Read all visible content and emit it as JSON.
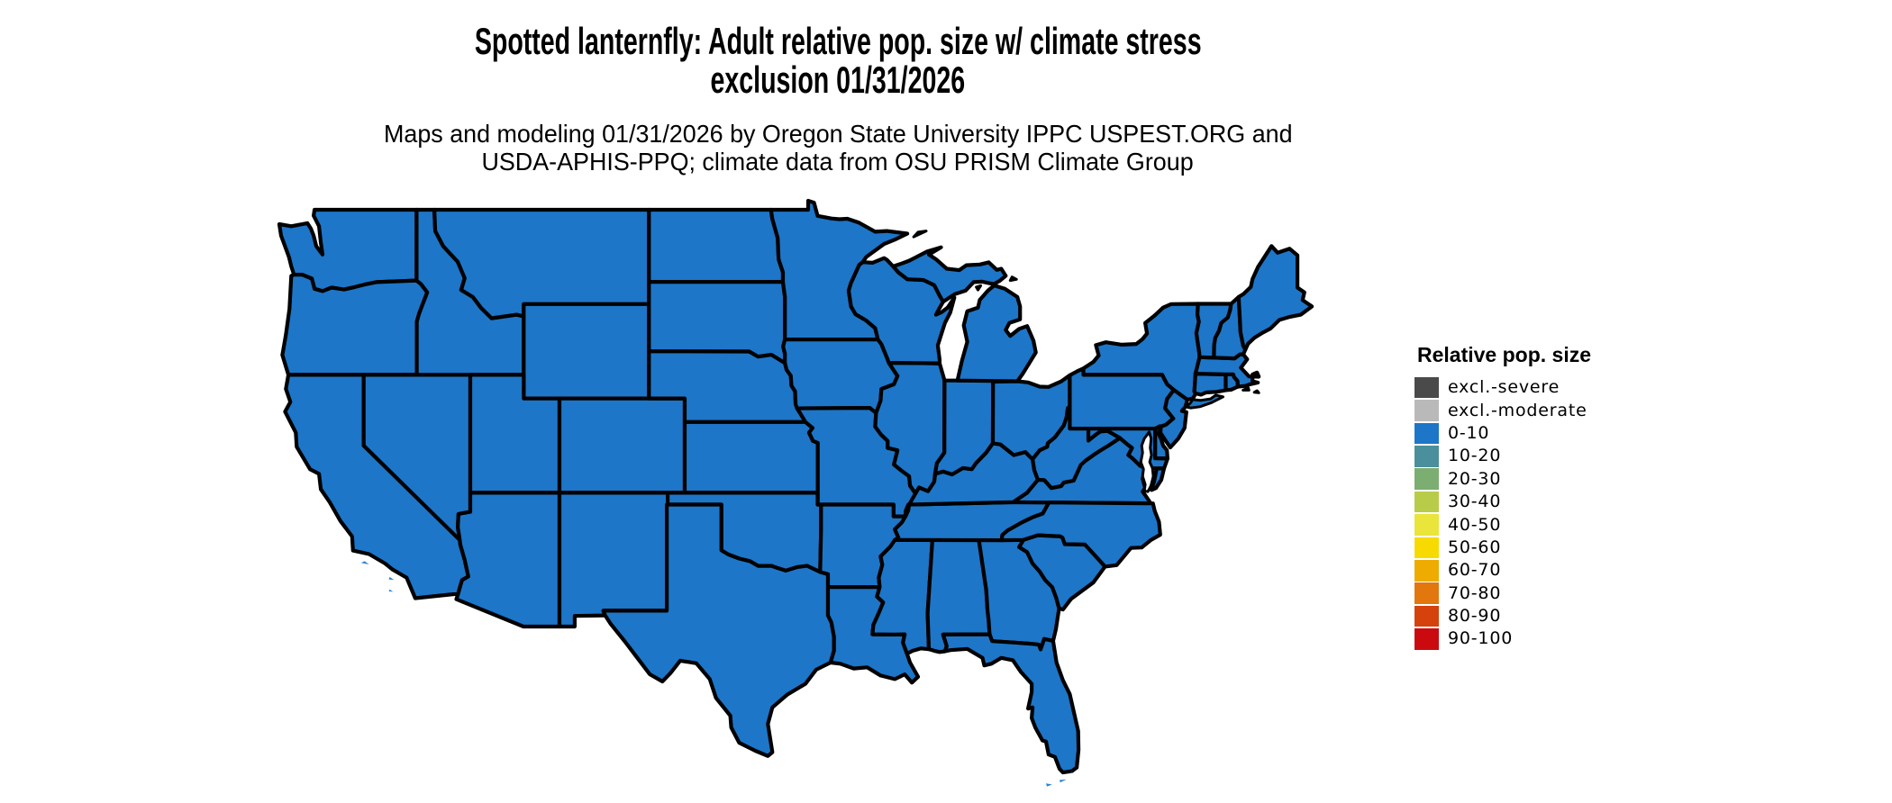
{
  "title": {
    "line1": "Spotted lanternfly: Adult relative pop. size w/ climate stress",
    "line2": "exclusion 01/31/2026"
  },
  "subtitle": {
    "line1": "Maps and modeling 01/31/2026 by Oregon State University IPPC USPEST.ORG and",
    "line2": "USDA-APHIS-PPQ; climate data from OSU PRISM Climate Group"
  },
  "legend": {
    "title": "Relative pop. size",
    "items": [
      {
        "label": "excl.-severe",
        "color": "#4a4a4a"
      },
      {
        "label": "excl.-moderate",
        "color": "#b9b9b9"
      },
      {
        "label": "0-10",
        "color": "#1d76c8"
      },
      {
        "label": "10-20",
        "color": "#4b8f9d"
      },
      {
        "label": "20-30",
        "color": "#7bae70"
      },
      {
        "label": "30-40",
        "color": "#b8cc4a"
      },
      {
        "label": "40-50",
        "color": "#e9e53a"
      },
      {
        "label": "50-60",
        "color": "#f7db00"
      },
      {
        "label": "60-70",
        "color": "#efac00"
      },
      {
        "label": "70-80",
        "color": "#e2770e"
      },
      {
        "label": "80-90",
        "color": "#d5420b"
      },
      {
        "label": "90-100",
        "color": "#cb0a10"
      }
    ]
  },
  "map": {
    "region": "contiguous United States",
    "all_states_value": "0-10",
    "fill_color": "#1d76c8",
    "island_color": "#2a83d2",
    "border_color": "#000000",
    "water_color": "#ffffff"
  }
}
